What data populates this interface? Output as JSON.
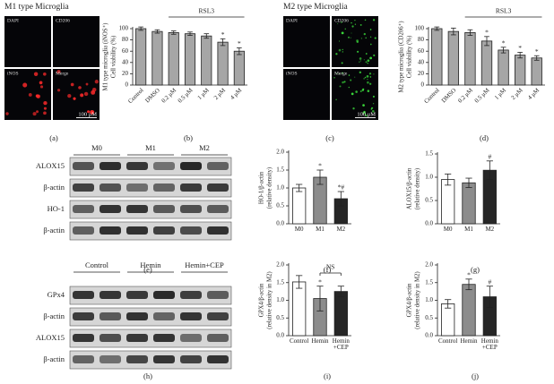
{
  "images": [
    {
      "title": "M1 type Microglia",
      "channels": [
        "DAPI",
        "CD206",
        "iNOS",
        "Merge"
      ],
      "stained": [
        false,
        false,
        true,
        true
      ],
      "stain_color": "#ff2a2a",
      "scale_bar": "100 μM",
      "panel_label": "(a)"
    },
    {
      "title": "M2 type Microglia",
      "channels": [
        "DAPI",
        "CD206",
        "iNOS",
        "Merge"
      ],
      "stained": [
        false,
        true,
        false,
        true
      ],
      "stain_color": "#3ad63a",
      "scale_bar": "100 μM",
      "panel_label": "(c)"
    }
  ],
  "blots": [
    {
      "columns": [
        "M0",
        "M1",
        "M2"
      ],
      "rows": [
        "ALOX15",
        "β-actin",
        "HO-1",
        "β-actin"
      ],
      "panel_label": "(e)"
    },
    {
      "columns": [
        "Control",
        "Hemin",
        "Hemin+CEP"
      ],
      "rows": [
        "GPx4",
        "β-actin",
        "ALOX15",
        "β-actin"
      ],
      "panel_label": "(h)"
    }
  ],
  "chart_data": [
    {
      "type": "bar",
      "ylabel": [
        "M1 type microglia (iNOS⁺)",
        "Cell viability (%)"
      ],
      "categories": [
        "Control",
        "DMSO",
        "0.2 μM",
        "0.5 μM",
        "1 μM",
        "2 μM",
        "4 μM"
      ],
      "values": [
        100,
        95,
        93,
        91,
        87,
        76,
        60
      ],
      "errors": [
        3,
        3,
        3,
        3,
        4,
        6,
        6
      ],
      "bar_labels": [
        null,
        null,
        null,
        null,
        null,
        "*",
        "*"
      ],
      "color": "#a6a6a6",
      "ylim": [
        0,
        100
      ],
      "yticks": [
        0,
        20,
        40,
        60,
        80,
        100
      ],
      "bracket": {
        "label": "RSL3",
        "from": "0.2 μM",
        "to": "4 μM"
      },
      "panel_label": "(b)"
    },
    {
      "type": "bar",
      "ylabel": [
        "M2 type microglia (CD206⁺)",
        "Cell viability (%)"
      ],
      "categories": [
        "Control",
        "DMSO",
        "0.2 μM",
        "0.5 μM",
        "1 μM",
        "2 μM",
        "4 μM"
      ],
      "values": [
        100,
        95,
        93,
        78,
        62,
        53,
        48
      ],
      "errors": [
        3,
        6,
        5,
        8,
        5,
        5,
        4
      ],
      "bar_labels": [
        null,
        null,
        null,
        "*",
        "*",
        "*",
        "*"
      ],
      "color": "#a6a6a6",
      "ylim": [
        0,
        100
      ],
      "yticks": [
        0,
        20,
        40,
        60,
        80,
        100
      ],
      "bracket": {
        "label": "RSL3",
        "from": "0.2 μM",
        "to": "4 μM"
      },
      "panel_label": "(d)"
    },
    {
      "type": "bar",
      "ylabel": [
        "HO-1/β-actin",
        "(relative density)"
      ],
      "categories": [
        "M0",
        "M1",
        "M2"
      ],
      "values": [
        1.0,
        1.3,
        0.7
      ],
      "errors": [
        0.1,
        0.2,
        0.2
      ],
      "bar_labels": [
        null,
        "*",
        "*#"
      ],
      "colors": [
        "#ffffff",
        "#8c8c8c",
        "#262626"
      ],
      "ylim": [
        0,
        2
      ],
      "yticks": [
        {
          "value": 0,
          "label": "0.0"
        },
        0.5,
        {
          "value": 1,
          "label": "1.0"
        },
        1.5,
        {
          "value": 2,
          "label": "2.0"
        }
      ],
      "panel_label": "(f)"
    },
    {
      "type": "bar",
      "ylabel": [
        "ALOX15/β-actin",
        "(relative density)"
      ],
      "categories": [
        "M0",
        "M1",
        "M2"
      ],
      "values": [
        0.95,
        0.88,
        1.15
      ],
      "errors": [
        0.12,
        0.1,
        0.2
      ],
      "bar_labels": [
        null,
        null,
        "#"
      ],
      "colors": [
        "#ffffff",
        "#8c8c8c",
        "#262626"
      ],
      "ylim": [
        0,
        1.5
      ],
      "yticks": [
        {
          "value": 0,
          "label": "0.0"
        },
        0.5,
        {
          "value": 1,
          "label": "1.0"
        },
        1.5
      ],
      "panel_label": "(g)"
    },
    {
      "type": "bar",
      "ylabel": [
        "GPX4/β-actin",
        "(relative density in M2)"
      ],
      "categories": [
        "Control",
        "Hemin",
        "Hemin\n+CEP"
      ],
      "values": [
        1.52,
        1.05,
        1.25
      ],
      "errors": [
        0.18,
        0.35,
        0.15
      ],
      "bar_labels": [
        null,
        "*",
        null
      ],
      "colors": [
        "#ffffff",
        "#8c8c8c",
        "#262626"
      ],
      "ylim": [
        0,
        2
      ],
      "yticks": [
        {
          "value": 0,
          "label": "0.0"
        },
        0.5,
        {
          "value": 1,
          "label": "1.0"
        },
        1.5,
        {
          "value": 2,
          "label": "2.0"
        }
      ],
      "bracket": {
        "label": "NS",
        "from": "Hemin",
        "to": "Hemin\n+CEP"
      },
      "panel_label": "(i)"
    },
    {
      "type": "bar",
      "ylabel": [
        "GPX4/β-actin",
        "(relative density in M2)"
      ],
      "categories": [
        "Control",
        "Hemin",
        "Hemin\n+CEP"
      ],
      "values": [
        0.9,
        1.45,
        1.1
      ],
      "errors": [
        0.12,
        0.15,
        0.3
      ],
      "bar_labels": [
        null,
        "*",
        "#"
      ],
      "colors": [
        "#ffffff",
        "#8c8c8c",
        "#262626"
      ],
      "ylim": [
        0,
        2
      ],
      "yticks": [
        {
          "value": 0,
          "label": "0.0"
        },
        0.5,
        {
          "value": 1,
          "label": "1.0"
        },
        1.5,
        {
          "value": 2,
          "label": "2.0"
        }
      ],
      "panel_label": "(j)"
    }
  ]
}
